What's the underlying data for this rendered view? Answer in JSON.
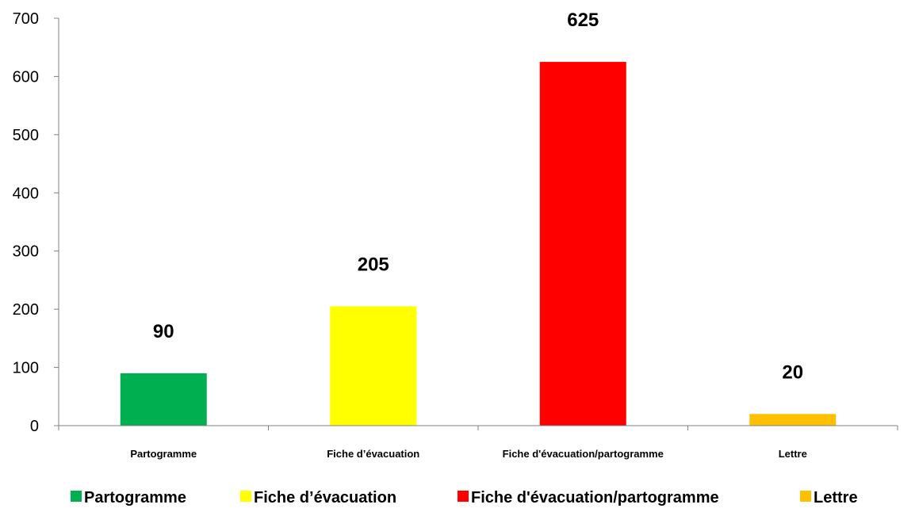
{
  "chart_data": {
    "type": "bar",
    "title": "",
    "xlabel": "",
    "ylabel": "",
    "categories": [
      "Partogramme",
      "Fiche  d’évacuation",
      "Fiche d'évacuation/partogramme",
      "Lettre"
    ],
    "values": [
      90,
      205,
      625,
      20
    ],
    "data_labels": [
      "90",
      "205",
      "625",
      "20"
    ],
    "colors": [
      "#00b050",
      "#ffff00",
      "#ff0000",
      "#ffc000"
    ],
    "ylim": [
      0,
      700
    ],
    "yticks": [
      0,
      100,
      200,
      300,
      400,
      500,
      600,
      700
    ],
    "grid": false,
    "legend": {
      "position": "bottom",
      "entries": [
        "Partogramme",
        "Fiche  d’évacuation",
        "Fiche d'évacuation/partogramme",
        "Lettre"
      ]
    }
  }
}
